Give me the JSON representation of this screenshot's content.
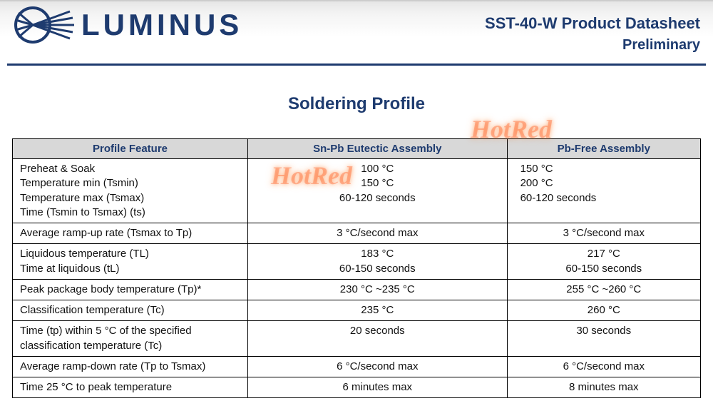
{
  "brand": {
    "name": "LUMINUS",
    "logo_color": "#1e3b6f"
  },
  "header": {
    "product_title": "SST-40-W Product Datasheet",
    "subtitle": "Preliminary"
  },
  "section_title": "Soldering Profile",
  "watermark_text": "HotRed",
  "table": {
    "columns": [
      "Profile Feature",
      "Sn-Pb Eutectic Assembly",
      "Pb-Free Assembly"
    ],
    "rows": [
      {
        "feature": "Preheat & Soak\nTemperature min (Tsmin)\nTemperature max (Tsmax)\nTime (Tsmin to Tsmax) (ts)",
        "snpb": "100 °C\n150 °C\n60-120 seconds",
        "pbfree": "150 °C\n200 °C\n60-120 seconds",
        "pbfree_align": "left"
      },
      {
        "feature": "Average ramp-up rate (Tsmax to Tp)",
        "snpb": "3 °C/second max",
        "pbfree": "3 °C/second max"
      },
      {
        "feature": "Liquidous temperature (TL)\nTime at liquidous (tL)",
        "snpb": "183 °C\n60-150 seconds",
        "pbfree": "217 °C\n60-150 seconds"
      },
      {
        "feature": "Peak package body temperature (Tp)*",
        "snpb": "230 °C ~235 °C",
        "pbfree": "255 °C ~260 °C"
      },
      {
        "feature": "Classification temperature (Tc)",
        "snpb": "235 °C",
        "pbfree": "260 °C"
      },
      {
        "feature": "Time (tp) within 5 °C of the specified classification temperature (Tc)",
        "snpb": "20 seconds",
        "pbfree": "30 seconds"
      },
      {
        "feature": "Average ramp-down rate (Tp to Tsmax)",
        "snpb": "6 °C/second max",
        "pbfree": "6 °C/second max"
      },
      {
        "feature": "Time 25 °C to peak temperature",
        "snpb": "6 minutes max",
        "pbfree": "8 minutes max"
      }
    ]
  },
  "styling": {
    "accent_color": "#1e3b6f",
    "header_bg_gradient": [
      "#e6e6e6",
      "#ffffff"
    ],
    "table_header_bg": "#d8d8d8",
    "table_border_color": "#000000",
    "body_text_color": "#111111",
    "font_family": "Segoe UI / Myriad Pro",
    "section_title_fontsize_pt": 18,
    "header_title_fontsize_pt": 17,
    "table_fontsize_pt": 11,
    "watermark_color": "rgba(255,80,20,0.35)"
  }
}
